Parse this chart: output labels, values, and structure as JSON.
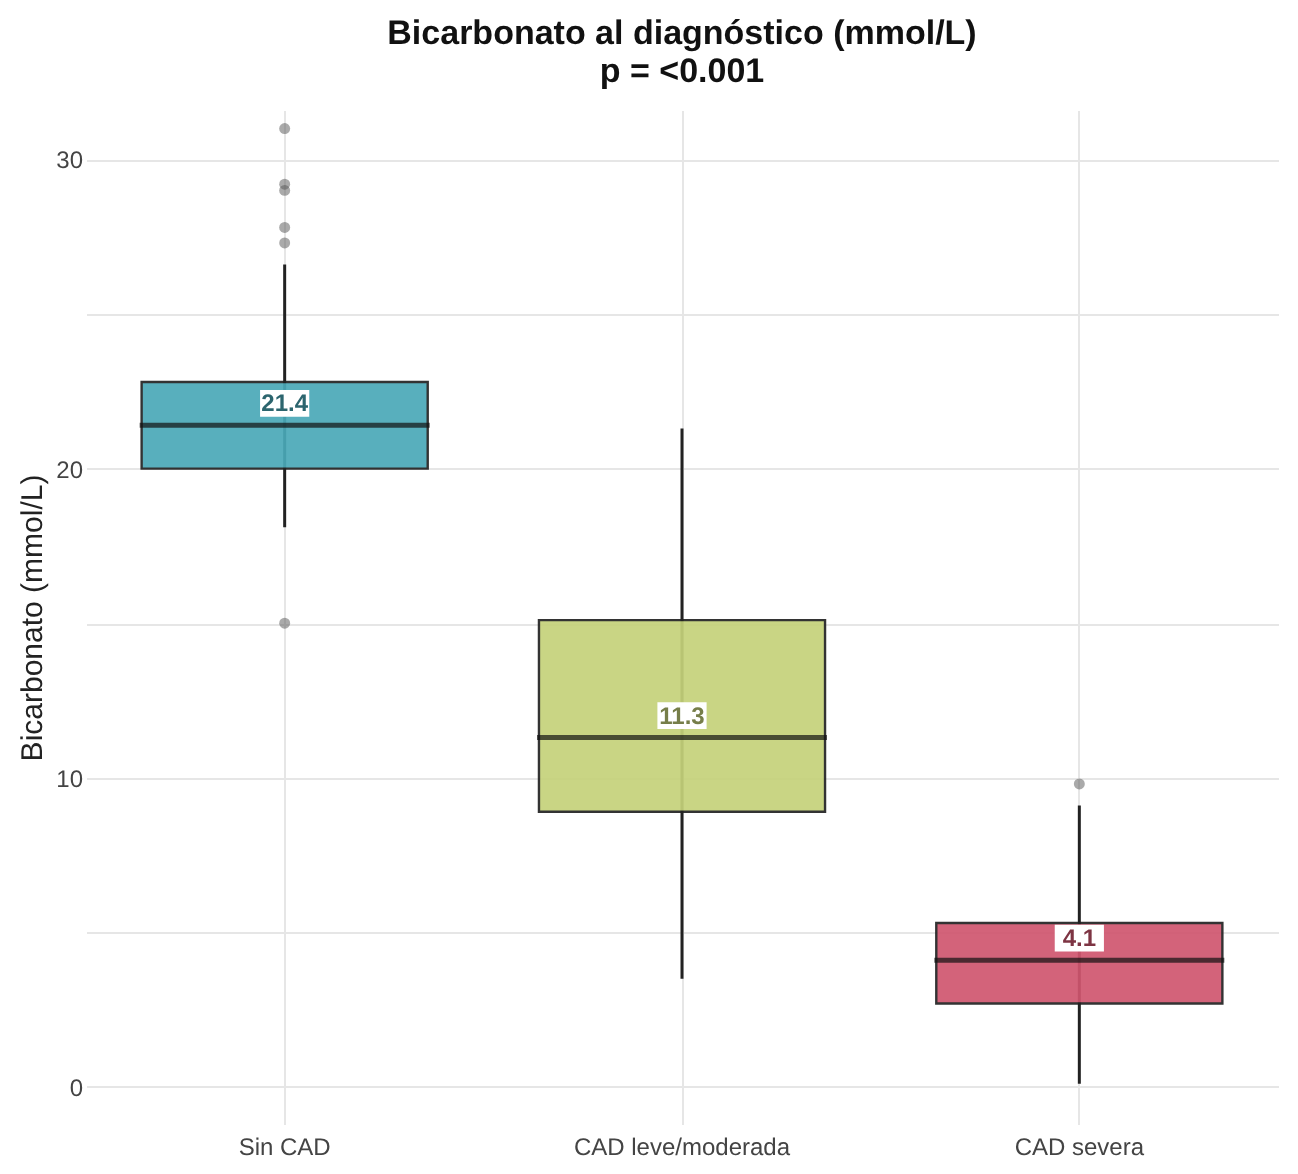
{
  "chart_data": {
    "type": "box",
    "title": "Bicarbonato al diagnóstico (mmol/L)",
    "subtitle": "p = <0.001",
    "ylabel": "Bicarbonato (mmol/L)",
    "categories": [
      "Sin CAD",
      "CAD leve/moderada",
      "CAD severa"
    ],
    "colors": [
      "#4aa9b8",
      "#c5d27a",
      "#d0566f"
    ],
    "boxes": [
      {
        "low": 18.1,
        "q1": 20.0,
        "median": 21.4,
        "q3": 22.8,
        "high": 26.6,
        "outliers": [
          31.0,
          29.2,
          29.0,
          27.8,
          27.3,
          15.0
        ]
      },
      {
        "low": 3.5,
        "q1": 8.9,
        "median": 11.3,
        "q3": 15.1,
        "high": 21.3
      },
      {
        "low": 0.1,
        "q1": 2.7,
        "median": 4.1,
        "q3": 5.3,
        "high": 9.1,
        "outliers": [
          9.8
        ]
      }
    ],
    "annotations": [
      {
        "text": "21.4",
        "x": "Sin CAD",
        "y": 21.4
      },
      {
        "text": "11.3",
        "x": "CAD leve/moderada",
        "y": 11.3
      },
      {
        "text": "4.1",
        "x": "CAD severa",
        "y": 4.1
      }
    ],
    "ylim": [
      -1.2,
      31.6
    ],
    "yticks": [
      0,
      {
        "value": 5,
        "label": null
      },
      10,
      {
        "value": 15,
        "label": null
      },
      20,
      {
        "value": 25,
        "label": null
      },
      30
    ],
    "grid": true
  }
}
